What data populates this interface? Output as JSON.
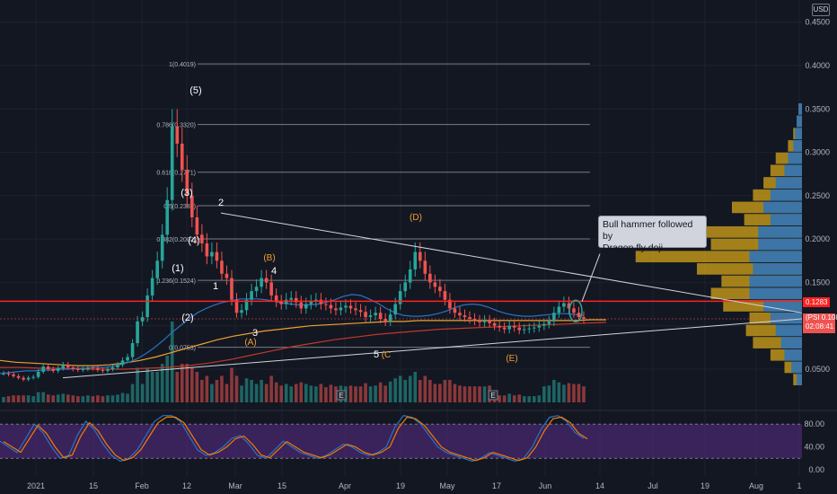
{
  "currency_button": "USD",
  "annotation": {
    "line1": "Bull hammer followed by",
    "line2": "Dragon fly doji"
  },
  "price_tags": {
    "red": "0.1283",
    "ticker": "(PSI",
    "last": "0.1080",
    "countdown": "02:08:41"
  },
  "colors": {
    "bg": "#131722",
    "up": "#26a69a",
    "down": "#ef5350",
    "osc_band": "#5b2b8a",
    "resistance": "#ff2222",
    "vp_up": "#d4a418",
    "vp_down": "#2a73c0",
    "orange": "#f0a030",
    "grey_line": "#787b86"
  },
  "chart_data": {
    "type": "candlestick",
    "price_axis": {
      "ticks": [
        "0.4500",
        "0.4000",
        "0.3500",
        "0.3000",
        "0.2500",
        "0.2000",
        "0.1500",
        "0.1000",
        "0.0500"
      ],
      "tick_values": [
        0.45,
        0.4,
        0.35,
        0.3,
        0.25,
        0.2,
        0.15,
        0.1,
        0.05
      ]
    },
    "time_axis": [
      "2021",
      "15",
      "Feb",
      "12",
      "Mar",
      "15",
      "Apr",
      "19",
      "May",
      "17",
      "Jun",
      "14",
      "Jul",
      "19",
      "Aug",
      "1"
    ],
    "fib_levels": [
      {
        "label": "1(0.4019)",
        "value": 0.4019
      },
      {
        "label": "0.786(0.3320)",
        "value": 0.332
      },
      {
        "label": "0.618(0.2771)",
        "value": 0.2771
      },
      {
        "label": "0.5(0.2385)",
        "value": 0.2385
      },
      {
        "label": "0.382(0.2002)",
        "value": 0.2002
      },
      {
        "label": "0.236(0.1524)",
        "value": 0.1524
      },
      {
        "label": "0(0.0753)",
        "value": 0.0753
      }
    ],
    "wave_labels_white": [
      "(5)",
      "(3)",
      "(4)",
      "2",
      "(1)",
      "(2)",
      "1",
      "3",
      "4",
      "5"
    ],
    "wave_labels_orange": [
      "(D)",
      "(B)",
      "(A)",
      "(C",
      "(E)"
    ],
    "earnings_marks": [
      "E",
      "E"
    ],
    "oscillator_ticks": [
      "80.00",
      "40.00",
      "0.00"
    ],
    "oscillator_tick_values": [
      80,
      40,
      0
    ],
    "closes": [
      0.045,
      0.044,
      0.042,
      0.04,
      0.038,
      0.04,
      0.041,
      0.047,
      0.053,
      0.05,
      0.048,
      0.051,
      0.055,
      0.052,
      0.05,
      0.049,
      0.05,
      0.052,
      0.051,
      0.049,
      0.048,
      0.05,
      0.052,
      0.055,
      0.06,
      0.064,
      0.08,
      0.105,
      0.11,
      0.135,
      0.155,
      0.175,
      0.205,
      0.245,
      0.33,
      0.31,
      0.28,
      0.25,
      0.225,
      0.205,
      0.195,
      0.18,
      0.185,
      0.175,
      0.16,
      0.155,
      0.13,
      0.115,
      0.118,
      0.13,
      0.14,
      0.145,
      0.155,
      0.15,
      0.135,
      0.128,
      0.125,
      0.13,
      0.132,
      0.127,
      0.12,
      0.125,
      0.128,
      0.13,
      0.125,
      0.124,
      0.12,
      0.118,
      0.121,
      0.123,
      0.12,
      0.118,
      0.116,
      0.11,
      0.112,
      0.115,
      0.108,
      0.105,
      0.113,
      0.125,
      0.14,
      0.15,
      0.165,
      0.185,
      0.175,
      0.16,
      0.15,
      0.145,
      0.14,
      0.13,
      0.12,
      0.115,
      0.112,
      0.11,
      0.108,
      0.106,
      0.104,
      0.106,
      0.103,
      0.1,
      0.098,
      0.096,
      0.1,
      0.098,
      0.095,
      0.096,
      0.097,
      0.098,
      0.1,
      0.102,
      0.105,
      0.115,
      0.122,
      0.126,
      0.12,
      0.115,
      0.11,
      0.108
    ],
    "ma_blue": [
      0.045,
      0.046,
      0.047,
      0.048,
      0.048,
      0.049,
      0.049,
      0.05,
      0.05,
      0.051,
      0.051,
      0.052,
      0.052,
      0.053,
      0.055,
      0.058,
      0.062,
      0.068,
      0.075,
      0.083,
      0.092,
      0.1,
      0.108,
      0.115,
      0.12,
      0.124,
      0.127,
      0.129,
      0.131,
      0.131,
      0.131,
      0.13,
      0.128,
      0.126,
      0.125,
      0.124,
      0.124,
      0.125,
      0.127,
      0.13,
      0.134,
      0.136,
      0.135,
      0.131,
      0.126,
      0.12,
      0.115,
      0.112,
      0.111,
      0.111,
      0.112,
      0.114,
      0.117,
      0.121,
      0.124,
      0.125,
      0.124,
      0.121,
      0.117,
      0.114,
      0.112,
      0.111,
      0.111,
      0.112,
      0.113,
      0.114,
      0.114,
      0.113,
      0.112
    ],
    "ma_orange": [
      0.06,
      0.058,
      0.057,
      0.056,
      0.055,
      0.054,
      0.054,
      0.055,
      0.057,
      0.06,
      0.064,
      0.069,
      0.074,
      0.079,
      0.084,
      0.088,
      0.091,
      0.094,
      0.096,
      0.098,
      0.1,
      0.101,
      0.102,
      0.103,
      0.104,
      0.105,
      0.105,
      0.106,
      0.106,
      0.106,
      0.106,
      0.106,
      0.106,
      0.106,
      0.106,
      0.106,
      0.106,
      0.106,
      0.107,
      0.107
    ],
    "ma_red": [
      0.052,
      0.052,
      0.051,
      0.051,
      0.05,
      0.05,
      0.05,
      0.051,
      0.052,
      0.054,
      0.057,
      0.061,
      0.066,
      0.071,
      0.076,
      0.08,
      0.084,
      0.087,
      0.09,
      0.092,
      0.094,
      0.096,
      0.097,
      0.098,
      0.099,
      0.1,
      0.101,
      0.102,
      0.103,
      0.104
    ],
    "resistance_level": 0.1283,
    "last_price": 0.108,
    "volume_profile_up": [
      0.02,
      0.03,
      0.05,
      0.08,
      0.15,
      0.18,
      0.22,
      0.28,
      0.4,
      0.33,
      0.55,
      0.52,
      0.95,
      0.6,
      0.46,
      0.52,
      0.45,
      0.3,
      0.32,
      0.28,
      0.18,
      0.1,
      0.05
    ],
    "volume_profile_down": [
      0.02,
      0.03,
      0.04,
      0.05,
      0.08,
      0.1,
      0.15,
      0.18,
      0.22,
      0.18,
      0.25,
      0.25,
      0.3,
      0.28,
      0.3,
      0.3,
      0.22,
      0.18,
      0.15,
      0.12,
      0.1,
      0.06,
      0.03
    ]
  }
}
